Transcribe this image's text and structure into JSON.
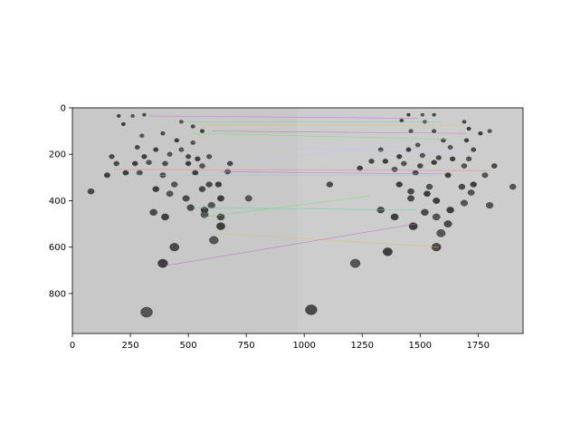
{
  "figure": {
    "description_icon": "matplotlib-figure-icon",
    "axes": {
      "x_ticks": [
        "0",
        "250",
        "500",
        "750",
        "1000",
        "1250",
        "1500",
        "1750"
      ],
      "y_ticks": [
        "0",
        "200",
        "400",
        "600",
        "800"
      ],
      "xlim": [
        0,
        1944
      ],
      "ylim": [
        972,
        0
      ]
    },
    "colors": {
      "background": "#c9c9c9",
      "stone": "#4a4a4a",
      "match_colors": [
        "#e05ce0",
        "#5cd6a0",
        "#e0c05c",
        "#c06cc0",
        "#6ce06c",
        "#c0c0ff",
        "#e08a8a",
        "#8ad0e0"
      ]
    }
  },
  "chart_data": {
    "type": "scatter",
    "title": "",
    "xlabel": "",
    "ylabel": "",
    "xlim": [
      0,
      1944
    ],
    "ylim": [
      972,
      0
    ],
    "x_ticks": [
      0,
      250,
      500,
      750,
      1000,
      1250,
      1500,
      1750
    ],
    "y_ticks": [
      0,
      200,
      400,
      600,
      800
    ],
    "grid": false,
    "matches": [
      [
        [
          330,
          35
        ],
        [
          1490,
          45
        ]
      ],
      [
        [
          480,
          60
        ],
        [
          1590,
          60
        ]
      ],
      [
        [
          560,
          75
        ],
        [
          1680,
          75
        ]
      ],
      [
        [
          600,
          100
        ],
        [
          1700,
          110
        ]
      ],
      [
        [
          520,
          110
        ],
        [
          1620,
          135
        ]
      ],
      [
        [
          700,
          235
        ],
        [
          1400,
          160
        ]
      ],
      [
        [
          180,
          265
        ],
        [
          1800,
          270
        ]
      ],
      [
        [
          230,
          290
        ],
        [
          1580,
          290
        ]
      ],
      [
        [
          640,
          275
        ],
        [
          1610,
          285
        ]
      ],
      [
        [
          530,
          430
        ],
        [
          1480,
          440
        ]
      ],
      [
        [
          630,
          540
        ],
        [
          1580,
          600
        ]
      ],
      [
        [
          400,
          680
        ],
        [
          1480,
          500
        ]
      ],
      [
        [
          570,
          470
        ],
        [
          1280,
          380
        ]
      ],
      [
        [
          900,
          170
        ],
        [
          1700,
          200
        ]
      ]
    ]
  }
}
